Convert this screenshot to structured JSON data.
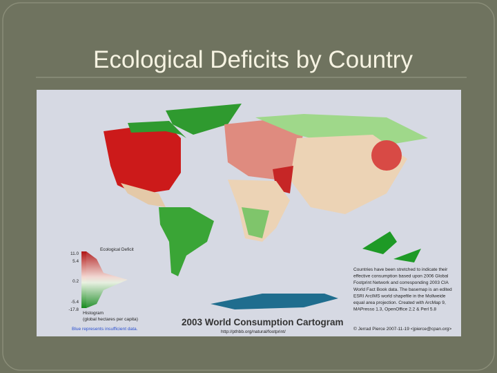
{
  "title": "Ecological Deficits by Country",
  "map": {
    "legend": {
      "heading": "Ecological Deficit",
      "ticks": [
        "11.0",
        "5.4",
        "0.2",
        "-5.4",
        "-17.8"
      ],
      "histogram": "Histogram",
      "units": "(global hectares per capita)",
      "note": "Blue represents insufficient data."
    },
    "map_title": "2003 World Consumption Cartogram",
    "url": "http://pthbb.org/natural/footprint/",
    "description": [
      "Countries have been stretched to indicate their",
      "effective consumption based upon 2006 Global",
      "Footprint Network and corresponding 2003 CIA",
      "World Fact Book data. The basemap is an edited",
      "ESRI ArcIMS world shapefile in the Mollweide",
      "equal area projection.  Created with ArcMap 9,",
      "MAPresso 1.3, OpenOffice 2.2 & Perl 5.8"
    ],
    "credit": "© Jerrad Pierce 2007-11-19 <jpierce@cpan.org>"
  }
}
